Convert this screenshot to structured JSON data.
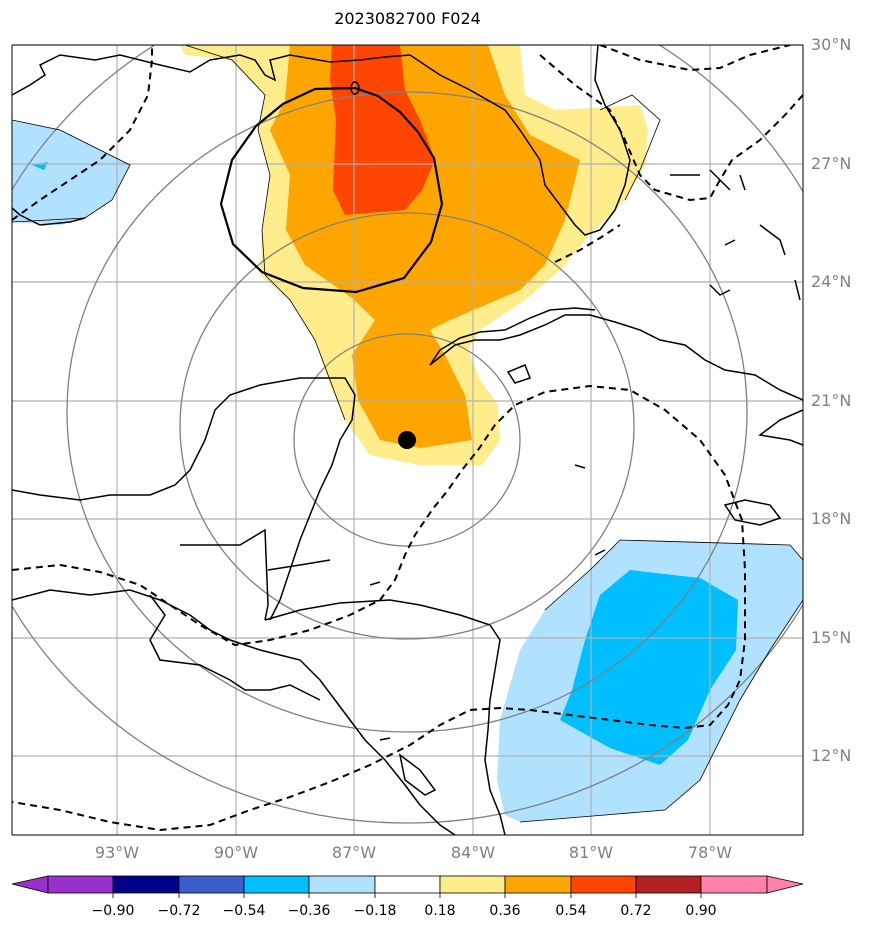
{
  "title": "2023082700 F024",
  "lat_labels": [
    "30°N",
    "27°N",
    "24°N",
    "21°N",
    "18°N",
    "15°N",
    "12°N"
  ],
  "lon_labels": [
    "93°W",
    "90°W",
    "87°W",
    "84°W",
    "81°W",
    "78°W"
  ],
  "colorbar": {
    "ticks": [
      "−0.90",
      "−0.72",
      "−0.54",
      "−0.36",
      "−0.18",
      "0.18",
      "0.36",
      "0.54",
      "0.72",
      "0.90"
    ],
    "colors": [
      "#9932cc",
      "#00008b",
      "#3a5fcd",
      "#00bfff",
      "#b0e2ff",
      "#ffffff",
      "#ffec8b",
      "#ffa500",
      "#ff4500",
      "#b22222",
      "#ff82ab"
    ]
  },
  "storm_center_marker": "black-dot",
  "colors": {
    "grid": "#b0b0b0",
    "range_rings": "#808080",
    "coast": "#000000"
  }
}
